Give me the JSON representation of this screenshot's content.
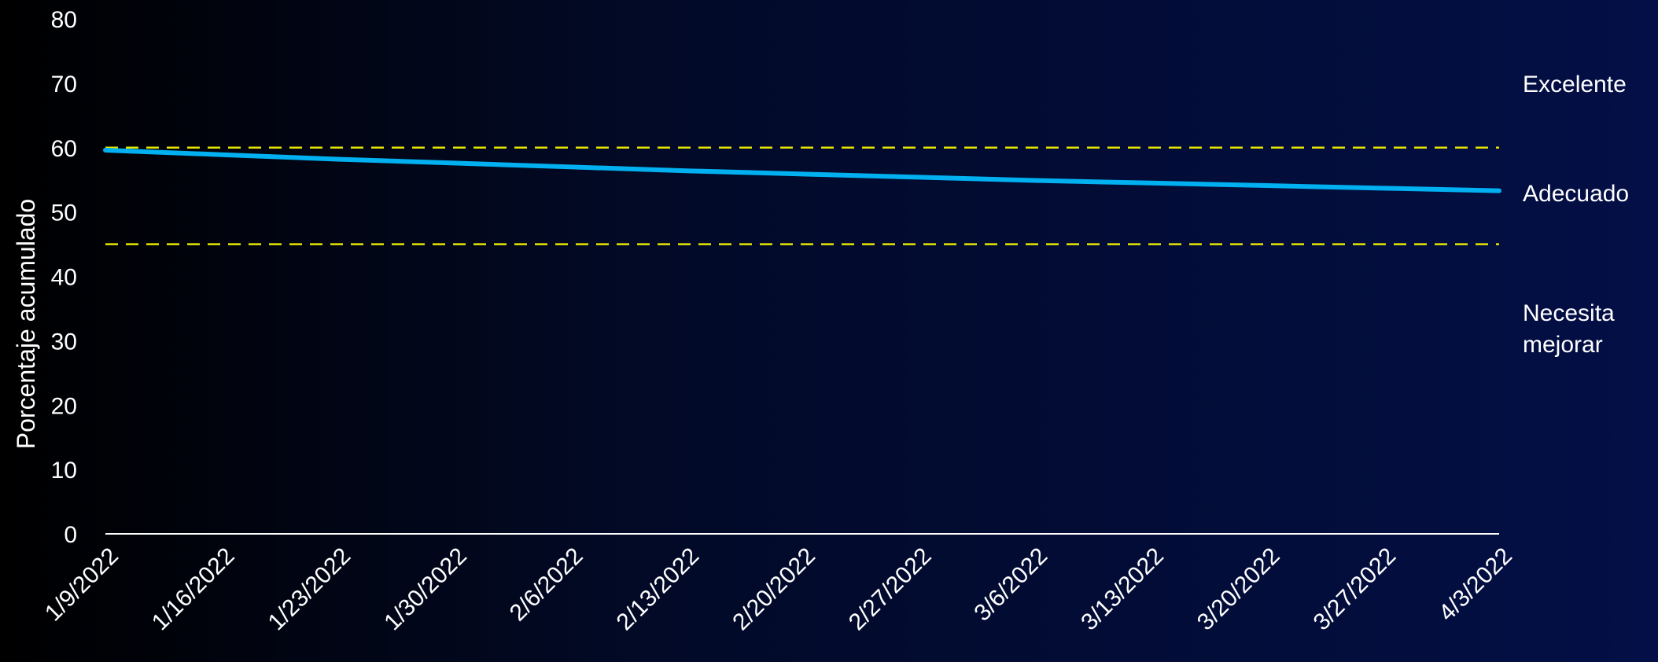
{
  "chart_data": {
    "type": "line",
    "title": "",
    "xlabel": "",
    "ylabel": "Porcentaje acumulado",
    "ylim": [
      0,
      80
    ],
    "yticks": [
      "0",
      "10",
      "20",
      "30",
      "40",
      "50",
      "60",
      "70",
      "80"
    ],
    "categories": [
      "1/9/2022",
      "1/16/2022",
      "1/23/2022",
      "1/30/2022",
      "2/6/2022",
      "2/13/2022",
      "2/20/2022",
      "2/27/2022",
      "3/6/2022",
      "3/13/2022",
      "3/20/2022",
      "3/27/2022",
      "4/3/2022"
    ],
    "series": [
      {
        "values": [
          59.6,
          58.9,
          58.2,
          57.6,
          57.0,
          56.4,
          55.9,
          55.4,
          54.9,
          54.5,
          54.1,
          53.7,
          53.3
        ],
        "color": "#00b0f0"
      }
    ],
    "reference_lines": [
      {
        "value": 60,
        "color": "#e6e600",
        "style": "dashed"
      },
      {
        "value": 45,
        "color": "#e6e600",
        "style": "dashed"
      }
    ],
    "zone_labels": [
      {
        "lines": [
          "Excelente"
        ],
        "value": 70
      },
      {
        "lines": [
          "Adecuado"
        ],
        "value": 53
      },
      {
        "lines": [
          "Necesita",
          "mejorar"
        ],
        "value": 32
      }
    ],
    "grid": false,
    "axis_color": "#ffffff"
  }
}
